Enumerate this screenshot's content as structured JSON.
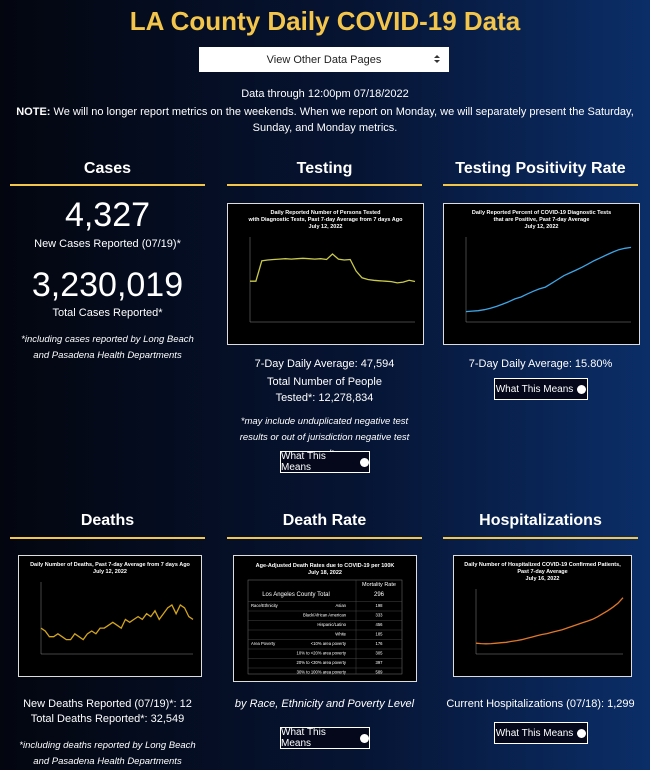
{
  "header": {
    "title": "LA County Daily COVID-19 Data",
    "select": "View Other Data Pages",
    "data_through": "Data through 12:00pm 07/18/2022",
    "note_label": "NOTE:",
    "note_text": "We will no longer report metrics on the weekends. When we report on Monday, we will separately present the Saturday, Sunday, and Monday metrics."
  },
  "cases": {
    "heading": "Cases",
    "new_cases": "4,327",
    "new_cases_label": "New Cases Reported (07/19)*",
    "total_cases": "3,230,019",
    "total_cases_label": "Total Cases Reported*",
    "footnote": "*including cases reported by Long Beach and Pasadena Health Departments"
  },
  "testing": {
    "heading": "Testing",
    "chart": {
      "title": [
        "Daily Reported Number of Persons Tested",
        "with Diagnostic Tests, Past 7-day Average from 7 days Ago",
        "July 12, 2022"
      ],
      "color": "#c9c94a",
      "ylim": [
        0,
        100000
      ],
      "values": [
        48000,
        48000,
        72000,
        73000,
        73500,
        74000,
        74500,
        74000,
        74500,
        75000,
        74500,
        74000,
        74500,
        73500,
        80000,
        74000,
        73000,
        73500,
        60000,
        52000,
        50000,
        49000,
        48500,
        48000,
        47500,
        46000,
        47000,
        49000,
        47594
      ]
    },
    "average": "7-Day Daily Average: 47,594",
    "total": "Total Number of People Tested*: 12,278,834",
    "footnote": "*may include unduplicated negative test results or out of jurisdiction negative test results",
    "button": "What This Means"
  },
  "positivity": {
    "heading": "Testing Positivity Rate",
    "chart": {
      "title": [
        "Daily Reported Percent of COVID-19 Diagnostic Tests",
        "that are Positive, Past 7-day Average",
        "July 12, 2022"
      ],
      "color": "#3ea6e6",
      "ylim": [
        0,
        18
      ],
      "values": [
        2.2,
        2.3,
        2.4,
        2.6,
        2.9,
        3.3,
        3.8,
        4.3,
        4.9,
        5.3,
        5.9,
        6.5,
        7.0,
        7.4,
        8.2,
        9.0,
        9.8,
        10.4,
        11.0,
        11.6,
        12.3,
        13.0,
        13.6,
        14.2,
        14.8,
        15.3,
        15.6,
        15.8
      ]
    },
    "average": "7-Day Daily Average: 15.80%",
    "button": "What This Means"
  },
  "deaths": {
    "heading": "Deaths",
    "chart": {
      "title": [
        "Daily Number of Deaths, Past 7-day Average from 7 days Ago",
        "July 12, 2022"
      ],
      "color": "#d4a51a",
      "ylim": [
        0,
        25
      ],
      "values": [
        9,
        8,
        6,
        6,
        7,
        6,
        5,
        5,
        7,
        6,
        5,
        7,
        8,
        7,
        9,
        9,
        10,
        11,
        10,
        9,
        12,
        11,
        12,
        13,
        12,
        14,
        13,
        15,
        12,
        14,
        16,
        17,
        14,
        17,
        16,
        13,
        12
      ]
    },
    "new_deaths": "New Deaths Reported (07/19)*: 12",
    "total_deaths": "Total Deaths Reported*: 32,549",
    "footnote": "*including deaths reported by Long Beach and Pasadena Health Departments"
  },
  "death_rate": {
    "heading": "Death Rate",
    "table": {
      "title": [
        "Age-Adjusted Death Rates due to COVID-19 per 100K",
        "July 18, 2022"
      ],
      "column": "Mortality Rate",
      "total_label": "Los Angeles County Total",
      "total": "296",
      "rows": [
        [
          "Race/Ethnicity",
          "Asian",
          "198"
        ],
        [
          "",
          "Black/African American",
          "333"
        ],
        [
          "",
          "Hispanic/Latino",
          "456"
        ],
        [
          "",
          "White",
          "185"
        ],
        [
          "Area Poverty",
          "<10% area poverty",
          "176"
        ],
        [
          "",
          "10% to <20% area poverty",
          "305"
        ],
        [
          "",
          "20% to <30% area poverty",
          "397"
        ],
        [
          "",
          "30% to 100% area poverty",
          "589"
        ]
      ]
    },
    "caption": "by Race, Ethnicity and Poverty Level",
    "button": "What This Means"
  },
  "hospitalizations": {
    "heading": "Hospitalizations",
    "chart": {
      "title": [
        "Daily Number of Hospitalized COVID-19 Confirmed Patients,",
        "Past 7-day Average",
        "July 16, 2022"
      ],
      "color": "#e0782a",
      "ylim": [
        0,
        1500
      ],
      "values": [
        250,
        240,
        235,
        240,
        250,
        260,
        270,
        290,
        310,
        330,
        360,
        390,
        420,
        450,
        470,
        500,
        530,
        560,
        600,
        640,
        680,
        720,
        760,
        800,
        860,
        930,
        1000,
        1080,
        1170,
        1299
      ]
    },
    "current": "Current Hospitalizations (07/18): 1,299",
    "button": "What This Means"
  }
}
